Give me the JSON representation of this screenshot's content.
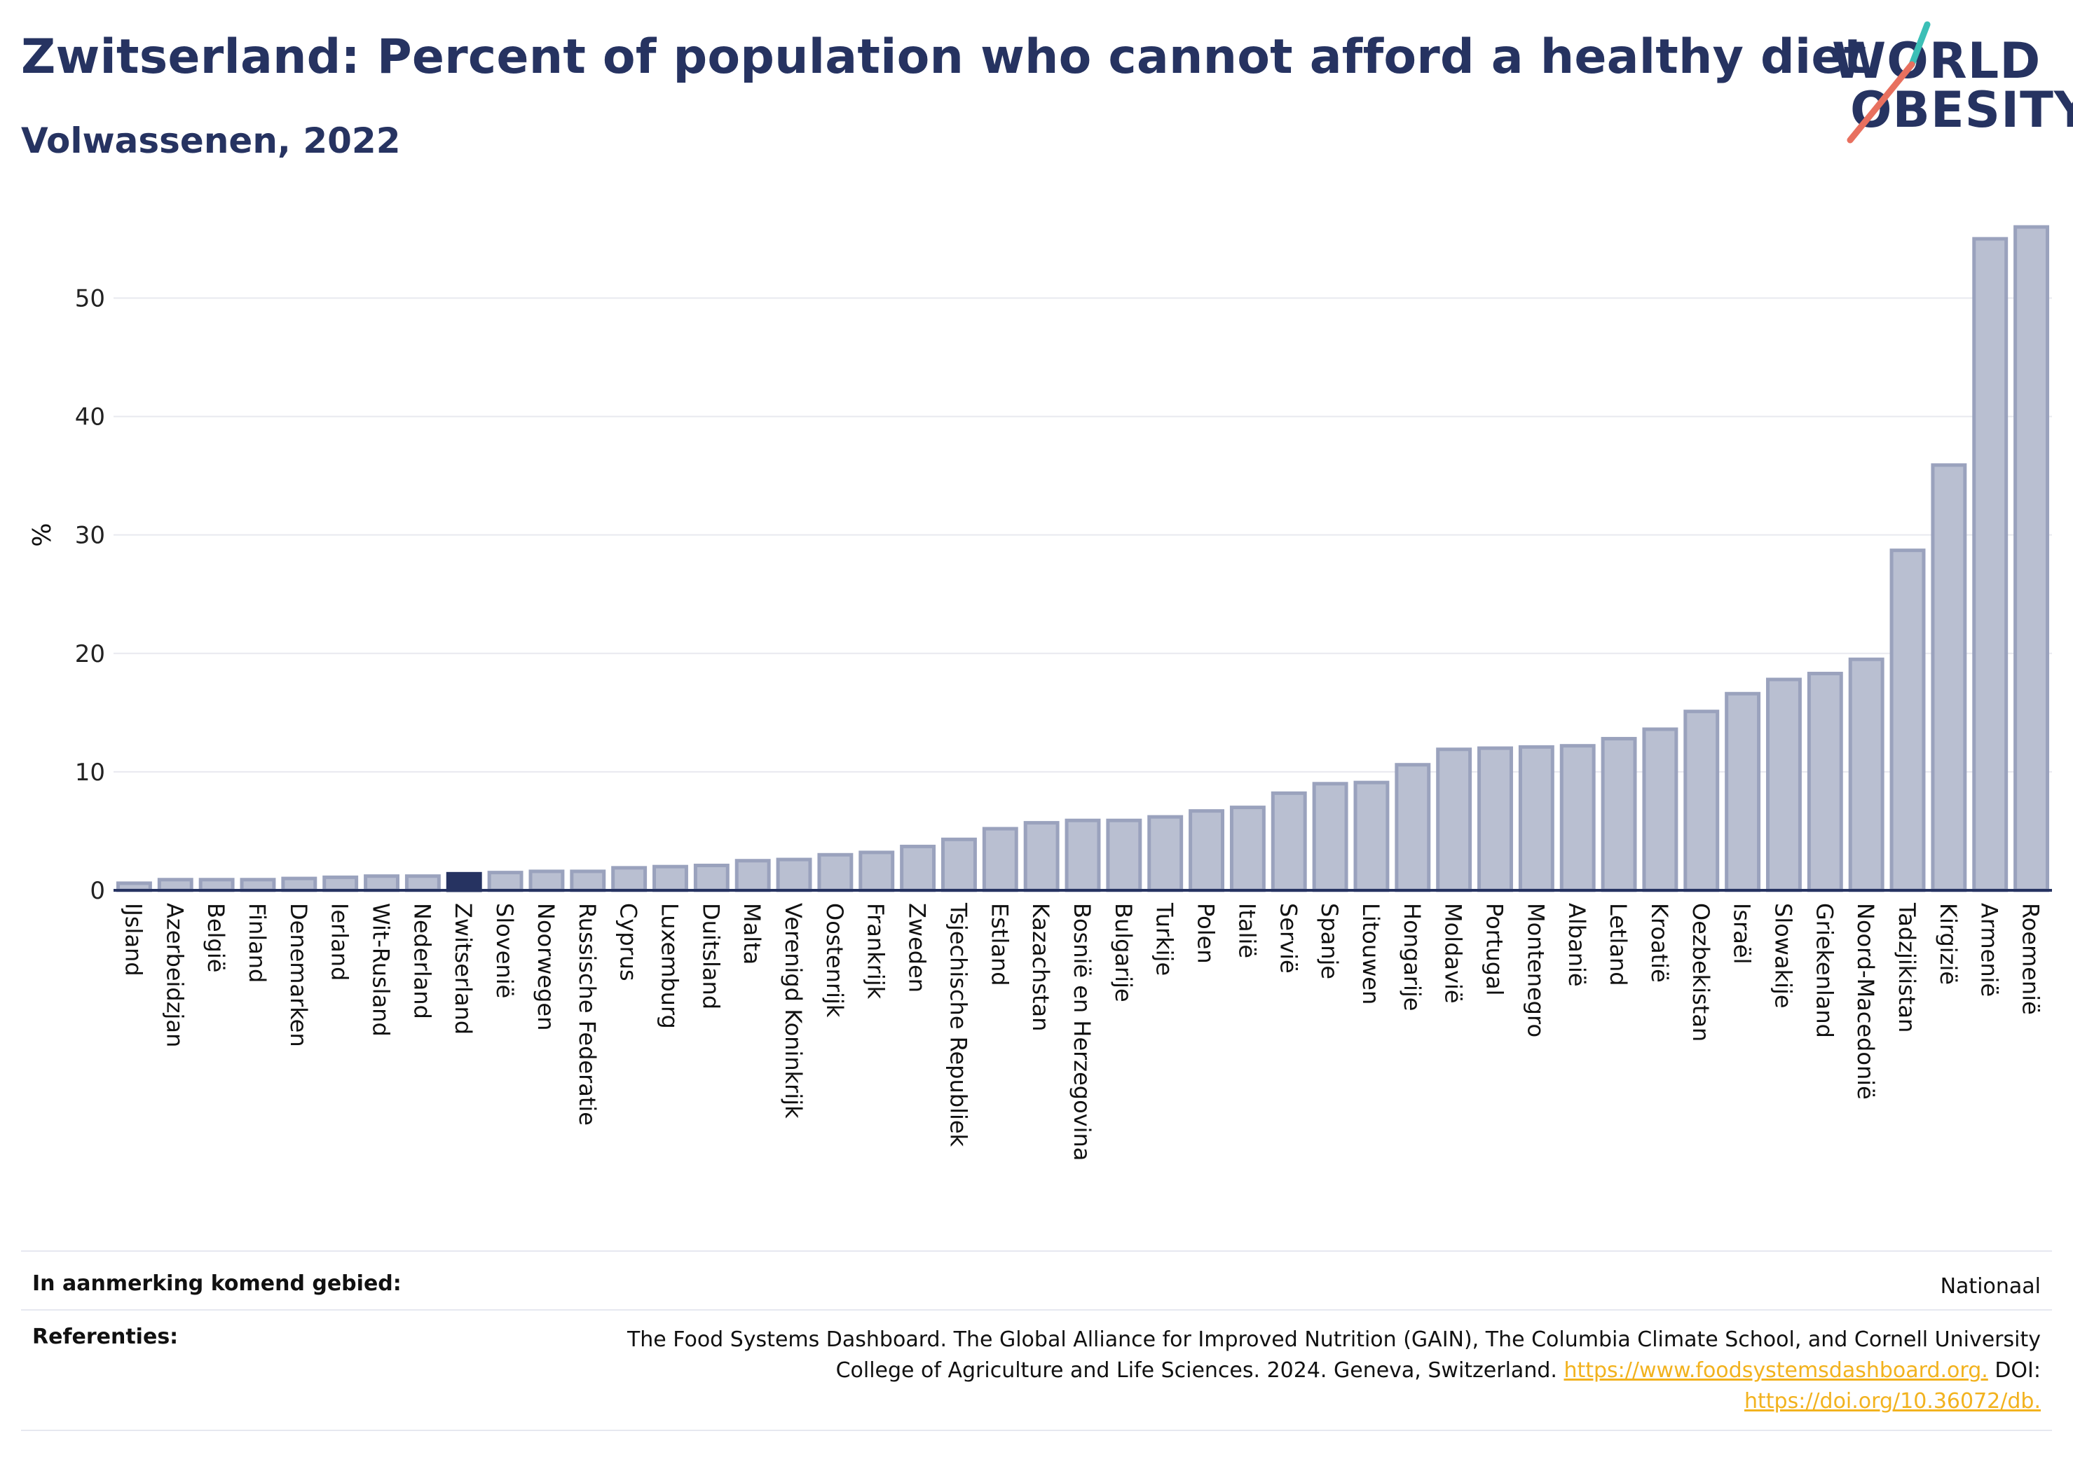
{
  "header": {
    "title": "Zwitserland: Percent of population who cannot afford a healthy diet",
    "subtitle": "Volwassenen, 2022"
  },
  "logo": {
    "line1": "WORLD",
    "line2": "OBESITY",
    "accent1": "#3bbfb6",
    "accent2": "#e8705f"
  },
  "colors": {
    "bar": "#b9bfd1",
    "bar_stroke": "#9aa2bd",
    "highlight": "#263361",
    "axis": "#263361",
    "grid": "#e8e9ef"
  },
  "chart_data": {
    "type": "bar",
    "title": "Zwitserland: Percent of population who cannot afford a healthy diet",
    "subtitle": "Volwassenen, 2022",
    "ylabel": "%",
    "ylim": [
      0,
      58
    ],
    "yticks": [
      0,
      10,
      20,
      30,
      40,
      50
    ],
    "grid": true,
    "highlight": "Zwitserland",
    "categories": [
      "IJsland",
      "Azerbeidzjan",
      "België",
      "Finland",
      "Denemarken",
      "Ierland",
      "Wit-Rusland",
      "Nederland",
      "Zwitserland",
      "Slovenië",
      "Noorwegen",
      "Russische Federatie",
      "Cyprus",
      "Luxemburg",
      "Duitsland",
      "Malta",
      "Verenigd Koninkrijk",
      "Oostenrijk",
      "Frankrijk",
      "Zweden",
      "Tsjechische Republiek",
      "Estland",
      "Kazachstan",
      "Bosnië en Herzegovina",
      "Bulgarije",
      "Turkije",
      "Polen",
      "Italië",
      "Servië",
      "Spanje",
      "Litouwen",
      "Hongarije",
      "Moldavië",
      "Portugal",
      "Montenegro",
      "Albanië",
      "Letland",
      "Kroatië",
      "Oezbekistan",
      "Israël",
      "Slowakije",
      "Griekenland",
      "Noord-Macedonië",
      "Tadzjikistan",
      "Kirgizië",
      "Armenië",
      "Roemenië"
    ],
    "values": [
      0.6,
      0.9,
      0.9,
      0.9,
      1.0,
      1.1,
      1.2,
      1.2,
      1.4,
      1.5,
      1.6,
      1.6,
      1.9,
      2.0,
      2.1,
      2.5,
      2.6,
      3.0,
      3.2,
      3.7,
      4.3,
      5.2,
      5.7,
      5.9,
      5.9,
      6.2,
      6.7,
      7.0,
      8.2,
      9.0,
      9.1,
      10.6,
      11.9,
      12.0,
      12.1,
      12.2,
      12.8,
      13.6,
      15.1,
      16.6,
      17.8,
      18.3,
      19.5,
      28.7,
      35.9,
      55.0,
      56.0
    ]
  },
  "footer": {
    "area_label": "In aanmerking komend gebied:",
    "area_value": "Nationaal",
    "ref_label": "Referenties:",
    "ref_text1": "The Food Systems Dashboard. The Global Alliance for Improved Nutrition (GAIN), The Columbia Climate School, and Cornell University",
    "ref_text2": "College of Agriculture and Life Sciences. 2024. Geneva, Switzerland.",
    "ref_link1": "https://www.foodsystemsdashboard.org.",
    "ref_doi_label": "DOI:",
    "ref_link2": "https://doi.org/10.36072/db."
  }
}
